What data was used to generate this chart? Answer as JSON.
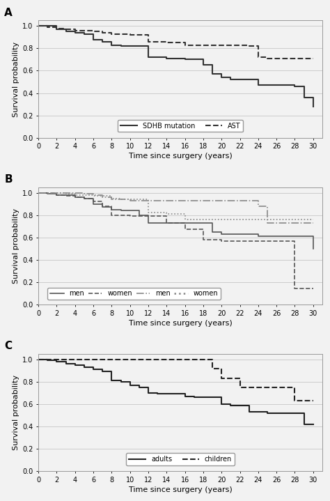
{
  "panel_A": {
    "label": "A",
    "sdhb": {
      "times": [
        0,
        1,
        2,
        3,
        4,
        5,
        6,
        7,
        8,
        9,
        10,
        12,
        14,
        16,
        18,
        19,
        20,
        21,
        22,
        23,
        24,
        28,
        29,
        30
      ],
      "surv": [
        1.0,
        1.0,
        0.97,
        0.95,
        0.94,
        0.93,
        0.88,
        0.86,
        0.83,
        0.82,
        0.82,
        0.72,
        0.71,
        0.7,
        0.65,
        0.57,
        0.54,
        0.52,
        0.52,
        0.52,
        0.47,
        0.46,
        0.36,
        0.28
      ],
      "label": "SDHB mutation",
      "linestyle": "solid",
      "color": "#333333",
      "linewidth": 1.5
    },
    "ast": {
      "times": [
        0,
        1,
        2,
        3,
        4,
        5,
        6,
        7,
        8,
        10,
        12,
        14,
        16,
        18,
        20,
        22,
        23,
        24,
        25,
        28,
        29,
        30
      ],
      "surv": [
        1.0,
        0.99,
        0.98,
        0.97,
        0.96,
        0.96,
        0.95,
        0.94,
        0.93,
        0.92,
        0.86,
        0.85,
        0.83,
        0.83,
        0.83,
        0.83,
        0.82,
        0.72,
        0.71,
        0.71,
        0.71,
        0.71
      ],
      "label": "AST",
      "linestyle": "dashed",
      "color": "#333333",
      "linewidth": 1.5
    },
    "ylabel": "Survival probability",
    "xlabel": "Time since surgery (years)",
    "ylim": [
      0.0,
      1.05
    ],
    "xlim": [
      0,
      31
    ],
    "yticks": [
      0.0,
      0.2,
      0.4,
      0.6,
      0.8,
      1.0
    ],
    "xticks": [
      0,
      2,
      4,
      6,
      8,
      10,
      12,
      14,
      16,
      18,
      20,
      22,
      24,
      26,
      28,
      30
    ]
  },
  "panel_B": {
    "label": "B",
    "sdhb_men": {
      "times": [
        0,
        1,
        2,
        4,
        5,
        6,
        7,
        8,
        9,
        10,
        11,
        12,
        14,
        16,
        18,
        19,
        20,
        22,
        24,
        26,
        28,
        30
      ],
      "surv": [
        1.0,
        0.99,
        0.98,
        0.96,
        0.95,
        0.9,
        0.87,
        0.85,
        0.84,
        0.84,
        0.8,
        0.73,
        0.73,
        0.73,
        0.73,
        0.65,
        0.63,
        0.63,
        0.61,
        0.61,
        0.61,
        0.5
      ],
      "label": "men",
      "linestyle": "solid",
      "color": "#555555",
      "linewidth": 1.2
    },
    "sdhb_women": {
      "times": [
        0,
        1,
        2,
        3,
        4,
        5,
        6,
        7,
        8,
        10,
        12,
        14,
        16,
        18,
        20,
        22,
        24,
        26,
        28,
        30
      ],
      "surv": [
        1.0,
        1.0,
        0.98,
        0.97,
        0.96,
        0.95,
        0.92,
        0.88,
        0.8,
        0.79,
        0.79,
        0.73,
        0.67,
        0.58,
        0.57,
        0.57,
        0.57,
        0.57,
        0.14,
        0.14
      ],
      "label": "women",
      "linestyle": "dashed",
      "color": "#555555",
      "linewidth": 1.2
    },
    "ast_men": {
      "times": [
        0,
        1,
        2,
        3,
        4,
        5,
        6,
        7,
        8,
        10,
        12,
        14,
        16,
        18,
        20,
        22,
        24,
        25,
        26,
        28,
        30
      ],
      "surv": [
        1.0,
        1.0,
        1.0,
        1.0,
        1.0,
        0.99,
        0.98,
        0.96,
        0.94,
        0.93,
        0.93,
        0.93,
        0.93,
        0.93,
        0.93,
        0.93,
        0.88,
        0.73,
        0.73,
        0.73,
        0.73
      ],
      "label": "men",
      "linestyle": "dashdot",
      "color": "#888888",
      "linewidth": 1.2
    },
    "ast_women": {
      "times": [
        0,
        1,
        2,
        3,
        4,
        5,
        6,
        8,
        9,
        10,
        12,
        14,
        16,
        18,
        20,
        22,
        24,
        26,
        28,
        30
      ],
      "surv": [
        1.0,
        1.0,
        1.0,
        0.99,
        0.98,
        0.98,
        0.97,
        0.95,
        0.94,
        0.94,
        0.82,
        0.81,
        0.76,
        0.76,
        0.76,
        0.76,
        0.76,
        0.76,
        0.76,
        0.76
      ],
      "label": "women",
      "linestyle": "dotted",
      "color": "#888888",
      "linewidth": 1.2
    },
    "ylabel": "Survival probability",
    "xlabel": "Time since surgery (years)",
    "ylim": [
      0.0,
      1.05
    ],
    "xlim": [
      0,
      31
    ],
    "yticks": [
      0.0,
      0.2,
      0.4,
      0.6,
      0.8,
      1.0
    ],
    "xticks": [
      0,
      2,
      4,
      6,
      8,
      10,
      12,
      14,
      16,
      18,
      20,
      22,
      24,
      26,
      28,
      30
    ]
  },
  "panel_C": {
    "label": "C",
    "adults": {
      "times": [
        0,
        1,
        2,
        3,
        4,
        5,
        6,
        7,
        8,
        9,
        10,
        11,
        12,
        13,
        14,
        15,
        16,
        17,
        18,
        19,
        20,
        21,
        22,
        23,
        24,
        25,
        26,
        28,
        29,
        30
      ],
      "surv": [
        1.0,
        0.99,
        0.98,
        0.96,
        0.95,
        0.93,
        0.91,
        0.89,
        0.81,
        0.8,
        0.77,
        0.75,
        0.7,
        0.69,
        0.69,
        0.69,
        0.67,
        0.66,
        0.66,
        0.66,
        0.6,
        0.59,
        0.59,
        0.53,
        0.53,
        0.52,
        0.52,
        0.52,
        0.42,
        0.42
      ],
      "label": "adults",
      "linestyle": "solid",
      "color": "#222222",
      "linewidth": 1.5
    },
    "children": {
      "times": [
        0,
        1,
        2,
        3,
        4,
        5,
        6,
        7,
        8,
        9,
        10,
        11,
        12,
        13,
        14,
        15,
        16,
        17,
        18,
        19,
        20,
        21,
        22,
        23,
        24,
        25,
        26,
        27,
        28,
        30
      ],
      "surv": [
        1.0,
        1.0,
        1.0,
        1.0,
        1.0,
        1.0,
        1.0,
        1.0,
        1.0,
        1.0,
        1.0,
        1.0,
        1.0,
        1.0,
        1.0,
        1.0,
        1.0,
        1.0,
        1.0,
        0.92,
        0.83,
        0.83,
        0.75,
        0.75,
        0.75,
        0.75,
        0.75,
        0.75,
        0.63,
        0.63
      ],
      "label": "children",
      "linestyle": "dashed",
      "color": "#222222",
      "linewidth": 1.5
    },
    "ylabel": "Survival probability",
    "xlabel": "Time since surgery (years)",
    "ylim": [
      0.0,
      1.05
    ],
    "xlim": [
      0,
      31
    ],
    "yticks": [
      0.0,
      0.2,
      0.4,
      0.6,
      0.8,
      1.0
    ],
    "xticks": [
      0,
      2,
      4,
      6,
      8,
      10,
      12,
      14,
      16,
      18,
      20,
      22,
      24,
      26,
      28,
      30
    ]
  },
  "background_color": "#f2f2f2",
  "axes_bg_color": "#f2f2f2",
  "grid_color": "#cccccc",
  "font_size": 7,
  "label_font_size": 8,
  "panel_label_size": 11
}
